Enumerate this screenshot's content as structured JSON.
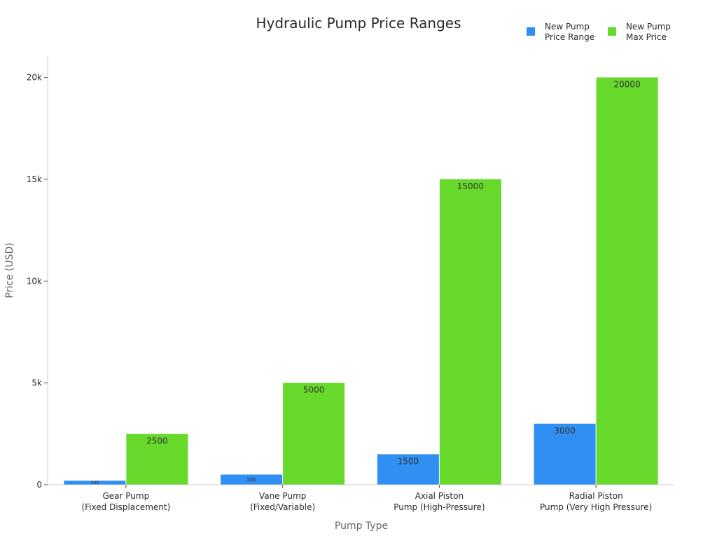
{
  "chart_data": {
    "type": "bar",
    "title": "Hydraulic Pump Price Ranges",
    "xlabel": "Pump Type",
    "ylabel": "Price (USD)",
    "categories": [
      [
        "Gear Pump",
        "(Fixed Displacement)"
      ],
      [
        "Vane Pump",
        "(Fixed/Variable)"
      ],
      [
        "Axial Piston",
        "Pump (High-Pressure)"
      ],
      [
        "Radial Piston",
        "Pump (Very High Pressure)"
      ]
    ],
    "series": [
      {
        "name": [
          "New Pump",
          "Price Range"
        ],
        "color": "#2f8ff2",
        "values": [
          200,
          500,
          1500,
          3000
        ],
        "labels": [
          "200",
          "500",
          "1500",
          "3000"
        ]
      },
      {
        "name": [
          "New Pump",
          "Max Price"
        ],
        "color": "#66d92a",
        "values": [
          2500,
          5000,
          15000,
          20000
        ],
        "labels": [
          "2500",
          "5000",
          "15000",
          "20000"
        ]
      }
    ],
    "ylim": [
      0,
      21000
    ],
    "yticks": [
      {
        "value": 0,
        "label": "0"
      },
      {
        "value": 5000,
        "label": "5k"
      },
      {
        "value": 10000,
        "label": "10k"
      },
      {
        "value": 15000,
        "label": "15k"
      },
      {
        "value": 20000,
        "label": "20k"
      }
    ],
    "grid": false,
    "legend_position": "top-right"
  }
}
